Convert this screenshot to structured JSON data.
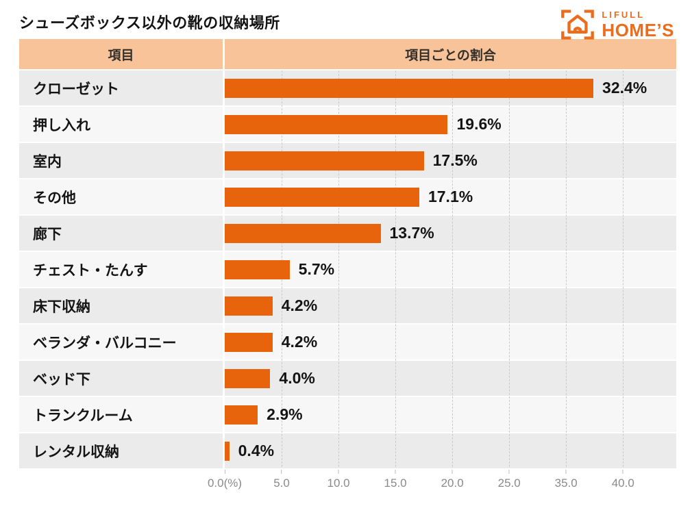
{
  "page": {
    "title": "シューズボックス以外の靴の収納場所"
  },
  "logo": {
    "brand_top": "LIFULL",
    "brand_bottom": "HOME’S",
    "color": "#EC6C1E",
    "icon": "house-viewfinder-icon"
  },
  "table": {
    "header": {
      "item_col": "項目",
      "ratio_col": "項目ごとの割合"
    }
  },
  "chart_data": {
    "type": "bar",
    "orientation": "horizontal",
    "title": "シューズボックス以外の靴の収納場所",
    "categories": [
      "クローゼット",
      "押し入れ",
      "室内",
      "その他",
      "廊下",
      "チェスト・たんす",
      "床下収納",
      "ベランダ・バルコニー",
      "ベッド下",
      "トランクルーム",
      "レンタル収納"
    ],
    "values": [
      32.4,
      19.6,
      17.5,
      17.1,
      13.7,
      5.7,
      4.2,
      4.2,
      4.0,
      2.9,
      0.4
    ],
    "value_labels": [
      "32.4%",
      "19.6%",
      "17.5%",
      "17.1%",
      "13.7%",
      "5.7%",
      "4.2%",
      "4.2%",
      "4.0%",
      "2.9%",
      "0.4%"
    ],
    "xlabel": "",
    "ylabel": "",
    "xlim": [
      0,
      40
    ],
    "x_tick_labels": [
      "0.0(%)",
      "5.0",
      "10.0",
      "15.0",
      "20.0",
      "25.0",
      "35.0",
      "40.0"
    ],
    "grid": true,
    "legend": "none",
    "bar_color": "#E8640C",
    "header_bg": "#F9C399",
    "row_color_odd": "#EBEBEB",
    "row_color_even": "#F7F7F7"
  }
}
